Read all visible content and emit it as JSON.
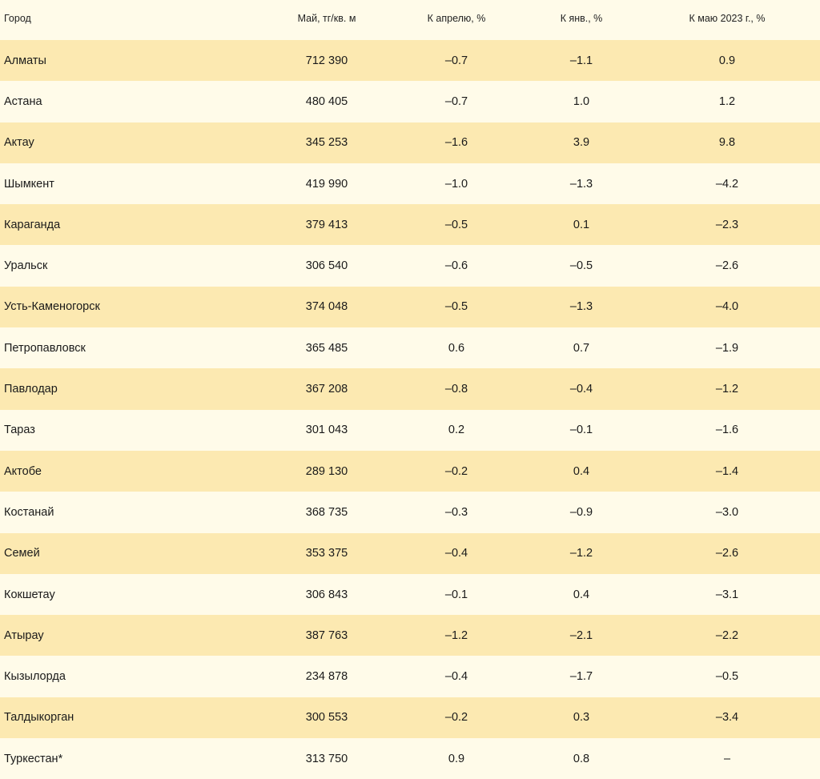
{
  "table": {
    "columns": {
      "city": "Город",
      "price": "Май, тг/кв. м",
      "apr": "К апрелю, %",
      "jan": "К янв., %",
      "may": "К маю 2023 г., %"
    },
    "rows": [
      {
        "city": "Алматы",
        "price": "712 390",
        "apr": "–0.7",
        "jan": "–1.1",
        "may": "0.9"
      },
      {
        "city": "Астана",
        "price": "480 405",
        "apr": "–0.7",
        "jan": "1.0",
        "may": "1.2"
      },
      {
        "city": "Актау",
        "price": "345 253",
        "apr": "–1.6",
        "jan": "3.9",
        "may": "9.8"
      },
      {
        "city": "Шымкент",
        "price": "419 990",
        "apr": "–1.0",
        "jan": "–1.3",
        "may": "–4.2"
      },
      {
        "city": "Караганда",
        "price": "379 413",
        "apr": "–0.5",
        "jan": "0.1",
        "may": "–2.3"
      },
      {
        "city": "Уральск",
        "price": "306 540",
        "apr": "–0.6",
        "jan": "–0.5",
        "may": "–2.6"
      },
      {
        "city": "Усть-Каменогорск",
        "price": "374 048",
        "apr": "–0.5",
        "jan": "–1.3",
        "may": "–4.0"
      },
      {
        "city": "Петропавловск",
        "price": "365 485",
        "apr": "0.6",
        "jan": "0.7",
        "may": "–1.9"
      },
      {
        "city": "Павлодар",
        "price": "367 208",
        "apr": "–0.8",
        "jan": "–0.4",
        "may": "–1.2"
      },
      {
        "city": "Тараз",
        "price": "301 043",
        "apr": "0.2",
        "jan": "–0.1",
        "may": "–1.6"
      },
      {
        "city": "Актобе",
        "price": "289 130",
        "apr": "–0.2",
        "jan": "0.4",
        "may": "–1.4"
      },
      {
        "city": "Костанай",
        "price": "368 735",
        "apr": "–0.3",
        "jan": "–0.9",
        "may": "–3.0"
      },
      {
        "city": "Семей",
        "price": "353 375",
        "apr": "–0.4",
        "jan": "–1.2",
        "may": "–2.6"
      },
      {
        "city": "Кокшетау",
        "price": "306 843",
        "apr": "–0.1",
        "jan": "0.4",
        "may": "–3.1"
      },
      {
        "city": "Атырау",
        "price": "387 763",
        "apr": "–1.2",
        "jan": "–2.1",
        "may": "–2.2"
      },
      {
        "city": "Кызылорда",
        "price": "234 878",
        "apr": "–0.4",
        "jan": "–1.7",
        "may": "–0.5"
      },
      {
        "city": "Талдыкорган",
        "price": "300 553",
        "apr": "–0.2",
        "jan": "0.3",
        "may": "–3.4"
      },
      {
        "city": "Туркестан*",
        "price": "313 750",
        "apr": "0.9",
        "jan": "0.8",
        "may": "–"
      }
    ]
  },
  "colors": {
    "stripe": "#fce9b1",
    "background": "#fffbe9"
  }
}
